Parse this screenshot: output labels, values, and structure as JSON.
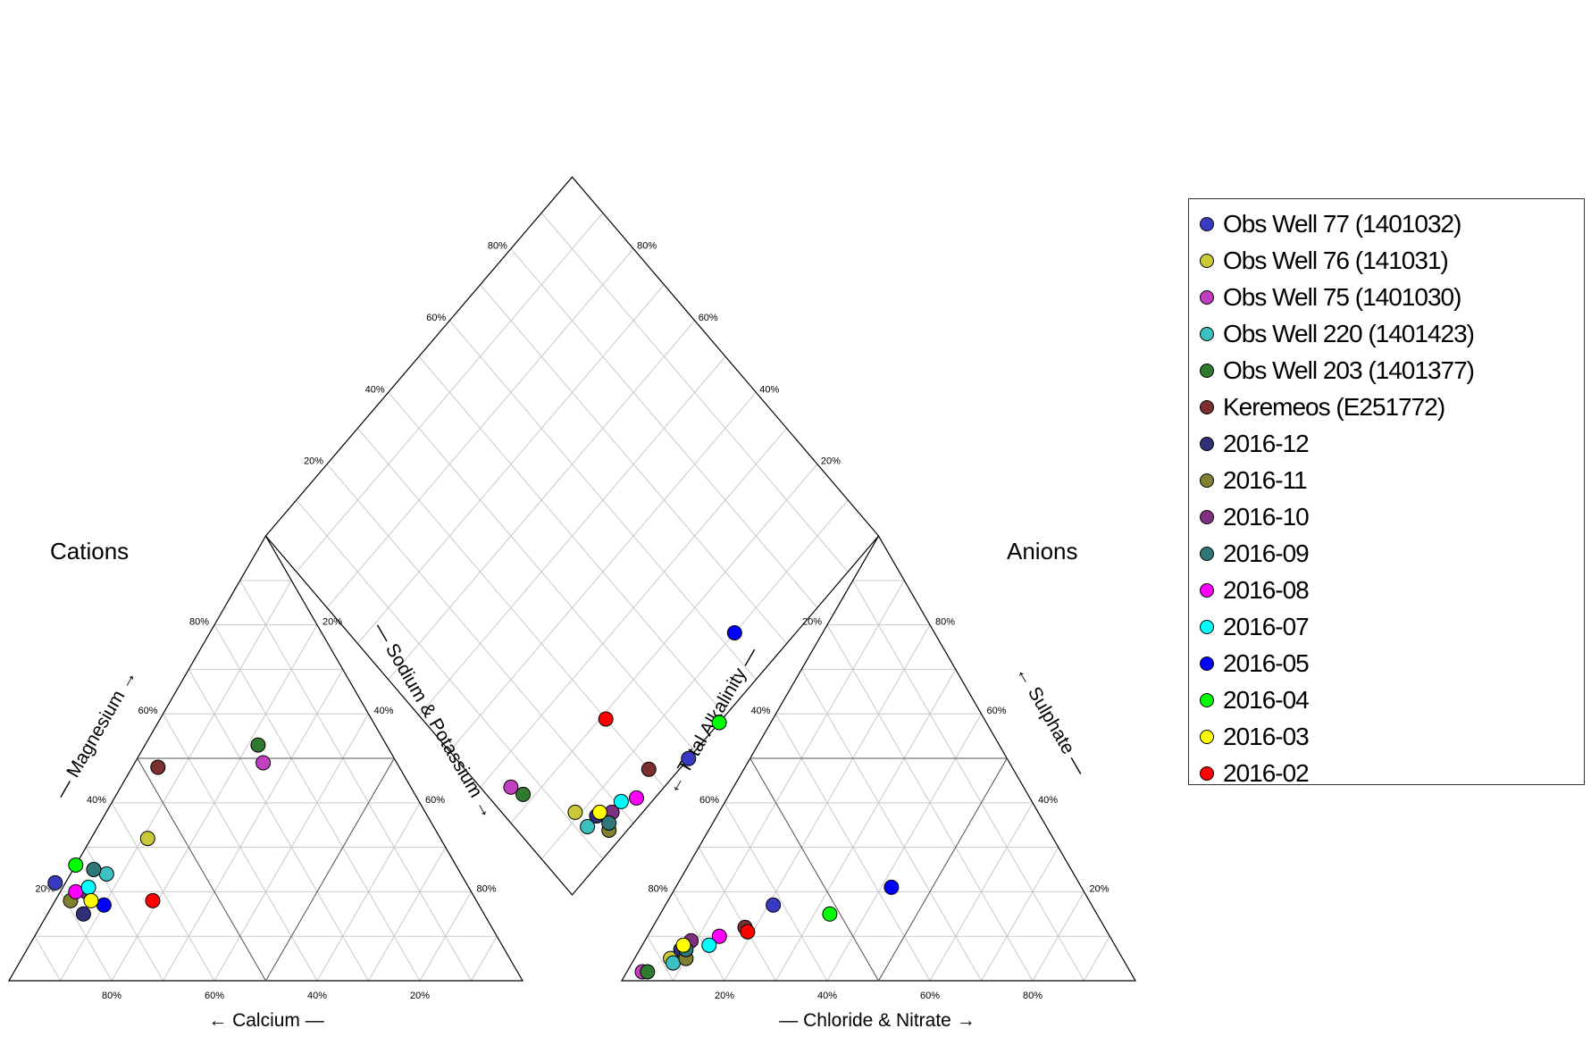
{
  "chart_data": {
    "type": "scatter",
    "subtype": "piper",
    "titles": {
      "cations": "Cations",
      "anions": "Anions"
    },
    "axis_labels": {
      "calcium": "← Calcium —",
      "magnesium": "— Magnesium →",
      "sodium_potassium": "— Sodium & Potassium →",
      "chloride_nitrate": "— Chloride & Nitrate →",
      "total_alkalinity": "← Total Alkalinity —",
      "sulphate": "← Sulphate —"
    },
    "ticks": [
      "20%",
      "40%",
      "60%",
      "80%"
    ],
    "grid": true,
    "legend_position": "right",
    "series": [
      {
        "name": "Obs Well 77 (1401032)",
        "color": "#3a3ac0",
        "cation": {
          "ca": 80,
          "mg": 22,
          "na": -2
        },
        "anion": {
          "cl": 21,
          "so4": 17,
          "alk": 62
        },
        "diamond": {
          "nak": 0,
          "so4cl": 38
        }
      },
      {
        "name": "Obs Well 76 (141031)",
        "color": "#c8c838",
        "cation": {
          "ca": 57,
          "mg": 32,
          "na": 11
        },
        "anion": {
          "cl": 7,
          "so4": 5,
          "alk": 88
        },
        "diamond": {
          "nak": 11,
          "so4cl": 12
        }
      },
      {
        "name": "Obs Well 75 (1401030)",
        "color": "#c040c0",
        "cation": {
          "ca": 26,
          "mg": 49,
          "na": 25
        },
        "anion": {
          "cl": 3,
          "so4": 2,
          "alk": 95
        },
        "diamond": {
          "nak": 25,
          "so4cl": 5
        }
      },
      {
        "name": "Obs Well 220 (1401423)",
        "color": "#3cc0c0",
        "cation": {
          "ca": 69,
          "mg": 24,
          "na": 7
        },
        "anion": {
          "cl": 8,
          "so4": 4,
          "alk": 88
        },
        "diamond": {
          "nak": 7,
          "so4cl": 12
        }
      },
      {
        "name": "Obs Well 203 (1401377)",
        "color": "#2e7a2e",
        "cation": {
          "ca": 25,
          "mg": 53,
          "na": 22
        },
        "anion": {
          "cl": 4,
          "so4": 2,
          "alk": 94
        },
        "diamond": {
          "nak": 22,
          "so4cl": 6
        }
      },
      {
        "name": "Keremeos (E251772)",
        "color": "#7a3030",
        "cation": {
          "ca": 47,
          "mg": 48,
          "na": 5
        },
        "anion": {
          "cl": 18,
          "so4": 12,
          "alk": 70
        },
        "diamond": {
          "nak": 5,
          "so4cl": 30
        }
      },
      {
        "name": "2016-12",
        "color": "#303078",
        "cation": {
          "ca": 78,
          "mg": 15,
          "na": 7
        },
        "anion": {
          "cl": 8,
          "so4": 7,
          "alk": 85
        },
        "diamond": {
          "nak": 7,
          "so4cl": 15
        }
      },
      {
        "name": "2016-11",
        "color": "#808030",
        "cation": {
          "ca": 79,
          "mg": 18,
          "na": 3
        },
        "anion": {
          "cl": 10,
          "so4": 5,
          "alk": 85
        },
        "diamond": {
          "nak": 3,
          "so4cl": 15
        }
      },
      {
        "name": "2016-10",
        "color": "#803080",
        "cation": {
          "ca": 75,
          "mg": 20,
          "na": 5
        },
        "anion": {
          "cl": 9,
          "so4": 9,
          "alk": 82
        },
        "diamond": {
          "nak": 5,
          "so4cl": 18
        }
      },
      {
        "name": "2016-09",
        "color": "#307878",
        "cation": {
          "ca": 71,
          "mg": 25,
          "na": 4
        },
        "anion": {
          "cl": 9,
          "so4": 7,
          "alk": 84
        },
        "diamond": {
          "nak": 4,
          "so4cl": 16
        }
      },
      {
        "name": "2016-08",
        "color": "#ff00ff",
        "cation": {
          "ca": 77,
          "mg": 20,
          "na": 3
        },
        "anion": {
          "cl": 14,
          "so4": 10,
          "alk": 76
        },
        "diamond": {
          "nak": 3,
          "so4cl": 24
        }
      },
      {
        "name": "2016-07",
        "color": "#00ffff",
        "cation": {
          "ca": 74,
          "mg": 21,
          "na": 5
        },
        "anion": {
          "cl": 13,
          "so4": 8,
          "alk": 79
        },
        "diamond": {
          "nak": 5,
          "so4cl": 21
        }
      },
      {
        "name": "2016-05",
        "color": "#0000ff",
        "cation": {
          "ca": 73,
          "mg": 17,
          "na": 10
        },
        "anion": {
          "cl": 42,
          "so4": 21,
          "alk": 37
        },
        "diamond": {
          "nak": 10,
          "so4cl": 63
        }
      },
      {
        "name": "2016-04",
        "color": "#00ff00",
        "cation": {
          "ca": 74,
          "mg": 26,
          "na": 0
        },
        "anion": {
          "cl": 33,
          "so4": 15,
          "alk": 52
        },
        "diamond": {
          "nak": 0,
          "so4cl": 48
        }
      },
      {
        "name": "2016-03",
        "color": "#ffff00",
        "cation": {
          "ca": 75,
          "mg": 18,
          "na": 7
        },
        "anion": {
          "cl": 8,
          "so4": 8,
          "alk": 84
        },
        "diamond": {
          "nak": 7,
          "so4cl": 16
        }
      },
      {
        "name": "2016-02",
        "color": "#ff0000",
        "cation": {
          "ca": 63,
          "mg": 18,
          "na": 19
        },
        "anion": {
          "cl": 19,
          "so4": 11,
          "alk": 70
        },
        "diamond": {
          "nak": 19,
          "so4cl": 30
        }
      }
    ]
  }
}
